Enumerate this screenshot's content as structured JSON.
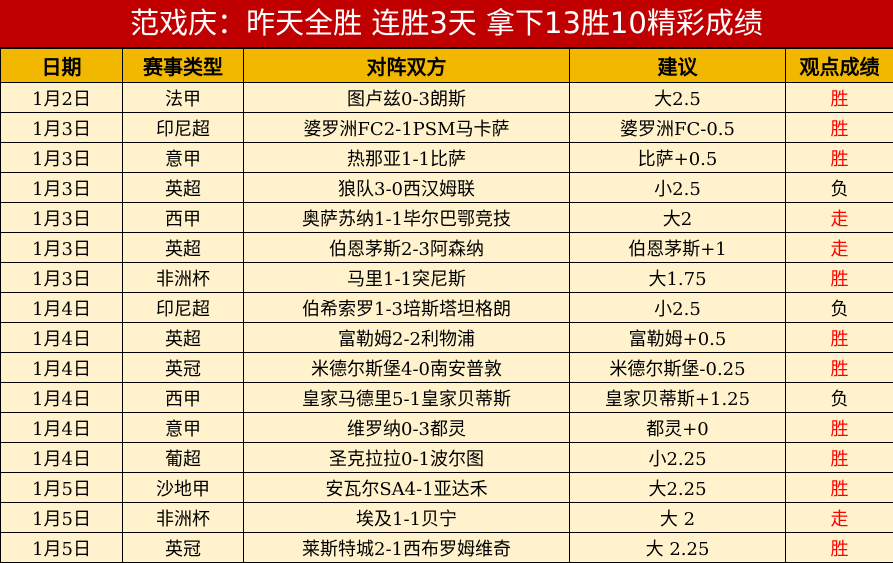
{
  "title": "范戏庆：昨天全胜 连胜3天 拿下13胜10精彩成绩",
  "headers": [
    "日期",
    "赛事类型",
    "对阵双方",
    "建议",
    "观点成绩"
  ],
  "colors": {
    "title_bg": "#c00000",
    "header_bg": "#f2b800",
    "row_bg": "#fff2cc",
    "win": "#ff0000",
    "lose": "#000000"
  },
  "rows": [
    {
      "date": "1月2日",
      "league": "法甲",
      "match": "图卢兹0-3朗斯",
      "tip": "大2.5",
      "result": "胜"
    },
    {
      "date": "1月3日",
      "league": "印尼超",
      "match": "婆罗洲FC2-1PSM马卡萨",
      "tip": "婆罗洲FC-0.5",
      "result": "胜"
    },
    {
      "date": "1月3日",
      "league": "意甲",
      "match": "热那亚1-1比萨",
      "tip": "比萨+0.5",
      "result": "胜"
    },
    {
      "date": "1月3日",
      "league": "英超",
      "match": "狼队3-0西汉姆联",
      "tip": "小2.5",
      "result": "负"
    },
    {
      "date": "1月3日",
      "league": "西甲",
      "match": "奥萨苏纳1-1毕尔巴鄂竞技",
      "tip": "大2",
      "result": "走"
    },
    {
      "date": "1月3日",
      "league": "英超",
      "match": "伯恩茅斯2-3阿森纳",
      "tip": "伯恩茅斯+1",
      "result": "走"
    },
    {
      "date": "1月3日",
      "league": "非洲杯",
      "match": "马里1-1突尼斯",
      "tip": "大1.75",
      "result": "胜"
    },
    {
      "date": "1月4日",
      "league": "印尼超",
      "match": "伯希索罗1-3培斯塔坦格朗",
      "tip": "小2.5",
      "result": "负"
    },
    {
      "date": "1月4日",
      "league": "英超",
      "match": "富勒姆2-2利物浦",
      "tip": "富勒姆+0.5",
      "result": "胜"
    },
    {
      "date": "1月4日",
      "league": "英冠",
      "match": "米德尔斯堡4-0南安普敦",
      "tip": "米德尔斯堡-0.25",
      "result": "胜"
    },
    {
      "date": "1月4日",
      "league": "西甲",
      "match": "皇家马德里5-1皇家贝蒂斯",
      "tip": "皇家贝蒂斯+1.25",
      "result": "负"
    },
    {
      "date": "1月4日",
      "league": "意甲",
      "match": "维罗纳0-3都灵",
      "tip": "都灵+0",
      "result": "胜"
    },
    {
      "date": "1月4日",
      "league": "葡超",
      "match": "圣克拉拉0-1波尔图",
      "tip": "小2.25",
      "result": "胜"
    },
    {
      "date": "1月5日",
      "league": "沙地甲",
      "match": "安瓦尔SA4-1亚达禾",
      "tip": "大2.25",
      "result": "胜"
    },
    {
      "date": "1月5日",
      "league": "非洲杯",
      "match": "埃及1-1贝宁",
      "tip": "大 2",
      "result": "走"
    },
    {
      "date": "1月5日",
      "league": "英冠",
      "match": "莱斯特城2-1西布罗姆维奇",
      "tip": "大 2.25",
      "result": "胜"
    }
  ]
}
